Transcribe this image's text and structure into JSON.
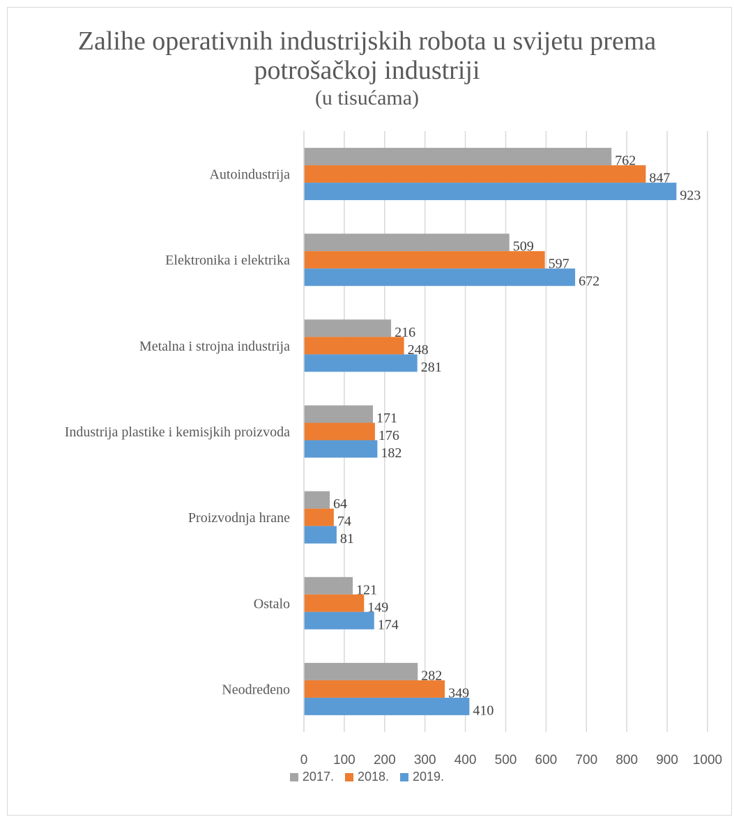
{
  "chart_data": {
    "type": "bar",
    "orientation": "horizontal",
    "title": "Zalihe operativnih industrijskih robota u svijetu prema potrošačkoj industriji",
    "subtitle": "(u tisućama)",
    "categories": [
      "Autoindustrija",
      "Elektronika i elektrika",
      "Metalna i strojna industrija",
      "Industrija plastike i kemisjkih proizvoda",
      "Proizvodnja hrane",
      "Ostalo",
      "Neodređeno"
    ],
    "series": [
      {
        "name": "2017.",
        "color": "#a5a5a5",
        "values": [
          762,
          509,
          216,
          171,
          64,
          121,
          282
        ]
      },
      {
        "name": "2018.",
        "color": "#ed7d31",
        "values": [
          847,
          597,
          248,
          176,
          74,
          149,
          349
        ]
      },
      {
        "name": "2019.",
        "color": "#5b9bd5",
        "values": [
          923,
          672,
          281,
          182,
          81,
          174,
          410
        ]
      }
    ],
    "xlim": [
      0,
      1000
    ],
    "xticks": [
      "0",
      "100",
      "200",
      "300",
      "400",
      "500",
      "600",
      "700",
      "800",
      "900",
      "1000"
    ],
    "grid": true,
    "legend_position": "bottom"
  }
}
